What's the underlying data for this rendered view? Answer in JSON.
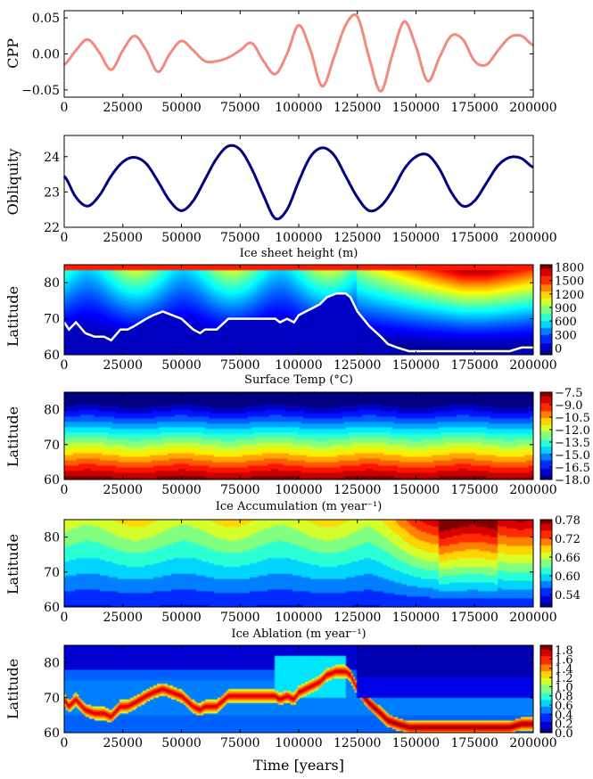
{
  "chart_data": [
    {
      "type": "line",
      "ylabel": "CPP",
      "xlabel": "",
      "xlim": [
        0,
        200000
      ],
      "ylim": [
        -0.06,
        0.06
      ],
      "xticks": [
        "0",
        "25000",
        "50000",
        "75000",
        "100000",
        "125000",
        "150000",
        "175000",
        "200000"
      ],
      "yticks": [
        "0.05",
        "0.00",
        "−0.05"
      ],
      "ytick_values": [
        0.05,
        0.0,
        -0.05
      ],
      "line_color": "#f08b7e",
      "series": [
        {
          "name": "CPP",
          "x": [
            0,
            5000,
            10000,
            15000,
            20000,
            25000,
            30000,
            35000,
            40000,
            45000,
            50000,
            55000,
            60000,
            65000,
            70000,
            75000,
            80000,
            85000,
            90000,
            95000,
            100000,
            105000,
            110000,
            115000,
            120000,
            125000,
            130000,
            135000,
            140000,
            145000,
            150000,
            155000,
            160000,
            165000,
            170000,
            175000,
            180000,
            185000,
            190000,
            195000,
            200000
          ],
          "values": [
            -0.015,
            0.005,
            0.02,
            0.002,
            -0.022,
            0.005,
            0.025,
            0.005,
            -0.025,
            0.0,
            0.018,
            0.005,
            -0.01,
            -0.01,
            -0.005,
            0.005,
            0.015,
            -0.01,
            -0.028,
            0.0,
            0.04,
            0.005,
            -0.045,
            -0.005,
            0.04,
            0.052,
            -0.005,
            -0.052,
            0.0,
            0.045,
            0.01,
            -0.038,
            -0.005,
            0.025,
            0.02,
            -0.01,
            -0.015,
            0.005,
            0.023,
            0.025,
            0.012
          ]
        }
      ]
    },
    {
      "type": "line",
      "ylabel": "Obliquity",
      "xlabel": "Ice sheet height (m)",
      "xlim": [
        0,
        200000
      ],
      "ylim": [
        22,
        24.6
      ],
      "xticks": [
        "0",
        "25000",
        "50000",
        "75000",
        "100000",
        "125000",
        "150000",
        "175000",
        "200000"
      ],
      "yticks": [
        "24",
        "23",
        "22"
      ],
      "ytick_values": [
        24,
        23,
        22
      ],
      "line_color": "#000080",
      "series": [
        {
          "name": "Obliquity",
          "x": [
            0,
            5000,
            10000,
            15000,
            20000,
            25000,
            30000,
            35000,
            40000,
            45000,
            50000,
            55000,
            60000,
            65000,
            70000,
            75000,
            80000,
            85000,
            90000,
            95000,
            100000,
            105000,
            110000,
            115000,
            120000,
            125000,
            130000,
            135000,
            140000,
            145000,
            150000,
            155000,
            160000,
            165000,
            170000,
            175000,
            180000,
            185000,
            190000,
            195000,
            200000
          ],
          "values": [
            23.45,
            22.85,
            22.6,
            22.9,
            23.45,
            23.85,
            23.98,
            23.8,
            23.3,
            22.75,
            22.47,
            22.75,
            23.35,
            23.95,
            24.3,
            24.2,
            23.65,
            22.9,
            22.25,
            22.5,
            23.3,
            24.0,
            24.25,
            24.05,
            23.45,
            22.85,
            22.47,
            22.6,
            23.05,
            23.65,
            24.0,
            24.05,
            23.65,
            23.0,
            22.6,
            22.75,
            23.25,
            23.75,
            23.98,
            23.95,
            23.7
          ]
        }
      ]
    },
    {
      "type": "heatmap",
      "ylabel": "Latitude",
      "xlabel": "Surface Temp (°C)",
      "xlim": [
        0,
        200000
      ],
      "ylim": [
        60,
        85
      ],
      "xticks": [
        "0",
        "25000",
        "50000",
        "75000",
        "100000",
        "125000",
        "150000",
        "175000",
        "200000"
      ],
      "yticks": [
        "80",
        "70",
        "60"
      ],
      "ytick_values": [
        80,
        70,
        60
      ],
      "colorbar_ticks": [
        "1800",
        "1500",
        "1200",
        "900",
        "600",
        "300",
        "0"
      ],
      "colorbar_values": [
        1800,
        1500,
        1200,
        900,
        600,
        300,
        0
      ],
      "value_range": [
        -150,
        1850
      ],
      "ice_line_color": "#ffffff",
      "ice_line_x": [
        0,
        2000,
        5000,
        9000,
        13000,
        17000,
        20000,
        24000,
        27000,
        30000,
        35000,
        38000,
        42000,
        46000,
        50000,
        55000,
        58000,
        60000,
        63000,
        65000,
        70000,
        75000,
        80000,
        85000,
        90000,
        92000,
        95000,
        98000,
        100000,
        103000,
        106000,
        109000,
        112000,
        116000,
        120000,
        122000,
        125000,
        130000,
        135000,
        138000,
        142000,
        147000,
        152000,
        157000,
        162000,
        170000,
        175000,
        180000,
        190000,
        195000,
        200000
      ],
      "ice_line_lat": [
        69,
        67,
        69,
        66,
        65,
        65,
        64,
        67,
        67,
        68,
        70,
        71,
        72,
        71,
        70,
        67,
        66,
        67,
        67,
        67,
        70,
        70,
        70,
        70,
        70,
        69,
        70,
        69,
        71,
        72,
        73,
        74,
        76,
        77,
        77,
        76,
        72,
        68,
        65,
        63,
        62,
        61,
        61,
        61,
        61,
        61,
        61,
        61,
        61,
        62,
        62
      ]
    },
    {
      "type": "heatmap",
      "ylabel": "Latitude",
      "xlabel": "Ice Accumulation (m year⁻¹)",
      "xlim": [
        0,
        200000
      ],
      "ylim": [
        60,
        85
      ],
      "xticks": [
        "0",
        "25000",
        "50000",
        "75000",
        "100000",
        "125000",
        "150000",
        "175000",
        "200000"
      ],
      "yticks": [
        "80",
        "70",
        "60"
      ],
      "ytick_values": [
        80,
        70,
        60
      ],
      "colorbar_ticks": [
        "−7.5",
        "−9.0",
        "−10.5",
        "−12.0",
        "−13.5",
        "−15.0",
        "−16.5",
        "−18.0"
      ],
      "colorbar_values": [
        -7.5,
        -9.0,
        -10.5,
        -12.0,
        -13.5,
        -15.0,
        -16.5,
        -18.0
      ],
      "value_range": [
        -18.0,
        -7.5
      ]
    },
    {
      "type": "heatmap",
      "ylabel": "Latitude",
      "xlabel": "Ice Ablation (m year⁻¹)",
      "xlim": [
        0,
        200000
      ],
      "ylim": [
        60,
        85
      ],
      "xticks": [
        "0",
        "25000",
        "50000",
        "75000",
        "100000",
        "125000",
        "150000",
        "175000",
        "200000"
      ],
      "yticks": [
        "80",
        "70",
        "60"
      ],
      "ytick_values": [
        80,
        70,
        60
      ],
      "colorbar_ticks": [
        "0.78",
        "0.72",
        "0.66",
        "0.60",
        "0.54"
      ],
      "colorbar_values": [
        0.78,
        0.72,
        0.66,
        0.6,
        0.54
      ],
      "value_range": [
        0.5,
        0.78
      ]
    },
    {
      "type": "heatmap",
      "ylabel": "Latitude",
      "xlabel": "Time [years]",
      "xlim": [
        0,
        200000
      ],
      "ylim": [
        60,
        85
      ],
      "xticks": [
        "0",
        "25000",
        "50000",
        "75000",
        "100000",
        "125000",
        "150000",
        "175000",
        "200000"
      ],
      "yticks": [
        "80",
        "70",
        "60"
      ],
      "ytick_values": [
        80,
        70,
        60
      ],
      "colorbar_ticks": [
        "1.8",
        "1.6",
        "1.4",
        "1.2",
        "1.0",
        "0.8",
        "0.6",
        "0.4",
        "0.2",
        "0.0"
      ],
      "colorbar_values": [
        1.8,
        1.6,
        1.4,
        1.2,
        1.0,
        0.8,
        0.6,
        0.4,
        0.2,
        0.0
      ],
      "value_range": [
        0.0,
        1.9
      ]
    }
  ]
}
